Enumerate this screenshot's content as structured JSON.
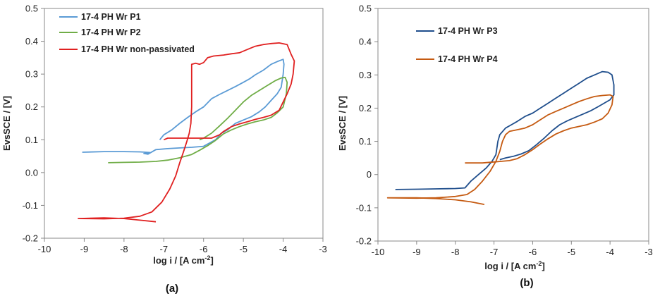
{
  "chart_data": [
    {
      "type": "line",
      "panel_label": "(a)",
      "title": "",
      "xlabel": "log i / [A cm",
      "xlabel_sup": "-2",
      "xlabel_end": "]",
      "ylabel": "EvsSCE / [V]",
      "xlim": [
        -10,
        -3
      ],
      "ylim": [
        -0.2,
        0.5
      ],
      "xticks": [
        -10,
        -9,
        -8,
        -7,
        -6,
        -5,
        -4,
        -3
      ],
      "yticks": [
        -0.2,
        -0.1,
        0.0,
        0.1,
        0.2,
        0.3,
        0.4,
        0.5
      ],
      "ytick_labels": [
        "-0.2",
        "-0.1",
        "0.0",
        "0.1",
        "0.2",
        "0.3",
        "0.4",
        "0.5"
      ],
      "grid": false,
      "legend_position": "top-left",
      "series": [
        {
          "name": "17-4 PH Wr P1",
          "color": "#5b9bd5",
          "points": [
            [
              -9.05,
              0.062
            ],
            [
              -8.5,
              0.064
            ],
            [
              -8.0,
              0.064
            ],
            [
              -7.6,
              0.063
            ],
            [
              -7.35,
              0.061
            ],
            [
              -7.5,
              0.058
            ],
            [
              -7.4,
              0.056
            ],
            [
              -7.2,
              0.07
            ],
            [
              -6.9,
              0.073
            ],
            [
              -6.6,
              0.075
            ],
            [
              -6.3,
              0.077
            ],
            [
              -6.0,
              0.08
            ],
            [
              -5.85,
              0.09
            ],
            [
              -5.7,
              0.1
            ],
            [
              -5.55,
              0.12
            ],
            [
              -5.4,
              0.13
            ],
            [
              -5.2,
              0.15
            ],
            [
              -5.0,
              0.16
            ],
            [
              -4.8,
              0.17
            ],
            [
              -4.6,
              0.185
            ],
            [
              -4.45,
              0.2
            ],
            [
              -4.3,
              0.22
            ],
            [
              -4.15,
              0.24
            ],
            [
              -4.05,
              0.26
            ],
            [
              -4.0,
              0.3
            ],
            [
              -3.98,
              0.33
            ],
            [
              -4.0,
              0.345
            ],
            [
              -4.15,
              0.338
            ],
            [
              -4.3,
              0.33
            ],
            [
              -4.5,
              0.312
            ],
            [
              -4.7,
              0.298
            ],
            [
              -4.85,
              0.285
            ],
            [
              -5.0,
              0.275
            ],
            [
              -5.2,
              0.262
            ],
            [
              -5.4,
              0.25
            ],
            [
              -5.6,
              0.238
            ],
            [
              -5.8,
              0.225
            ],
            [
              -6.0,
              0.2
            ],
            [
              -6.2,
              0.185
            ],
            [
              -6.4,
              0.168
            ],
            [
              -6.6,
              0.15
            ],
            [
              -6.8,
              0.13
            ],
            [
              -7.0,
              0.115
            ],
            [
              -7.1,
              0.1
            ]
          ]
        },
        {
          "name": "17-4 PH Wr P2",
          "color": "#70ad47",
          "points": [
            [
              -8.4,
              0.03
            ],
            [
              -8.0,
              0.031
            ],
            [
              -7.6,
              0.032
            ],
            [
              -7.2,
              0.034
            ],
            [
              -6.9,
              0.038
            ],
            [
              -6.6,
              0.045
            ],
            [
              -6.3,
              0.055
            ],
            [
              -6.1,
              0.068
            ],
            [
              -5.9,
              0.082
            ],
            [
              -5.7,
              0.098
            ],
            [
              -5.5,
              0.118
            ],
            [
              -5.3,
              0.13
            ],
            [
              -5.1,
              0.14
            ],
            [
              -4.9,
              0.148
            ],
            [
              -4.7,
              0.155
            ],
            [
              -4.5,
              0.16
            ],
            [
              -4.3,
              0.168
            ],
            [
              -4.15,
              0.182
            ],
            [
              -4.0,
              0.2
            ],
            [
              -3.92,
              0.24
            ],
            [
              -3.9,
              0.275
            ],
            [
              -3.95,
              0.29
            ],
            [
              -4.05,
              0.288
            ],
            [
              -4.2,
              0.28
            ],
            [
              -4.4,
              0.265
            ],
            [
              -4.6,
              0.25
            ],
            [
              -4.8,
              0.235
            ],
            [
              -5.0,
              0.215
            ],
            [
              -5.2,
              0.19
            ],
            [
              -5.4,
              0.165
            ],
            [
              -5.6,
              0.142
            ],
            [
              -5.8,
              0.12
            ],
            [
              -6.0,
              0.105
            ],
            [
              -6.1,
              0.1
            ]
          ]
        },
        {
          "name": "17-4 PH Wr non-passivated",
          "color": "#e02020",
          "points": [
            [
              -7.2,
              -0.15
            ],
            [
              -7.6,
              -0.145
            ],
            [
              -8.0,
              -0.14
            ],
            [
              -8.5,
              -0.138
            ],
            [
              -9.15,
              -0.14
            ],
            [
              -8.5,
              -0.141
            ],
            [
              -8.0,
              -0.139
            ],
            [
              -7.6,
              -0.133
            ],
            [
              -7.3,
              -0.12
            ],
            [
              -7.05,
              -0.09
            ],
            [
              -6.85,
              -0.05
            ],
            [
              -6.7,
              -0.01
            ],
            [
              -6.6,
              0.03
            ],
            [
              -6.5,
              0.065
            ],
            [
              -6.42,
              0.095
            ],
            [
              -6.36,
              0.12
            ],
            [
              -6.32,
              0.15
            ],
            [
              -6.3,
              0.2
            ],
            [
              -6.3,
              0.25
            ],
            [
              -6.3,
              0.3
            ],
            [
              -6.3,
              0.33
            ],
            [
              -6.2,
              0.333
            ],
            [
              -6.1,
              0.33
            ],
            [
              -6.0,
              0.335
            ],
            [
              -5.9,
              0.35
            ],
            [
              -5.75,
              0.355
            ],
            [
              -5.5,
              0.358
            ],
            [
              -5.3,
              0.362
            ],
            [
              -5.1,
              0.365
            ],
            [
              -4.9,
              0.375
            ],
            [
              -4.7,
              0.385
            ],
            [
              -4.5,
              0.39
            ],
            [
              -4.3,
              0.393
            ],
            [
              -4.1,
              0.395
            ],
            [
              -3.9,
              0.39
            ],
            [
              -3.8,
              0.36
            ],
            [
              -3.72,
              0.34
            ],
            [
              -3.75,
              0.3
            ],
            [
              -3.8,
              0.27
            ],
            [
              -3.9,
              0.24
            ],
            [
              -4.0,
              0.215
            ],
            [
              -4.1,
              0.19
            ],
            [
              -4.3,
              0.175
            ],
            [
              -4.5,
              0.168
            ],
            [
              -4.7,
              0.162
            ],
            [
              -4.9,
              0.155
            ],
            [
              -5.1,
              0.148
            ],
            [
              -5.3,
              0.14
            ],
            [
              -5.5,
              0.125
            ],
            [
              -5.6,
              0.115
            ],
            [
              -5.8,
              0.105
            ],
            [
              -6.0,
              0.105
            ],
            [
              -6.3,
              0.105
            ],
            [
              -6.6,
              0.105
            ],
            [
              -6.9,
              0.105
            ],
            [
              -7.0,
              0.1
            ]
          ]
        }
      ]
    },
    {
      "type": "line",
      "panel_label": "(b)",
      "title": "",
      "xlabel": "log i / [A cm",
      "xlabel_sup": "-2",
      "xlabel_end": "]",
      "ylabel": "EvsSCE / [V]",
      "xlim": [
        -10,
        -3
      ],
      "ylim": [
        -0.2,
        0.5
      ],
      "xticks": [
        -10,
        -9,
        -8,
        -7,
        -6,
        -5,
        -4,
        -3
      ],
      "yticks": [
        -0.2,
        -0.1,
        0.0,
        0.1,
        0.2,
        0.3,
        0.4,
        0.5
      ],
      "ytick_labels": [
        "-0.2",
        "-0.1",
        "0",
        "0.1",
        "0.2",
        "0.3",
        "0.4",
        "0.5"
      ],
      "grid": false,
      "legend_position": "top-left",
      "series": [
        {
          "name": "17-4 PH Wr P3",
          "color": "#1f4e8c",
          "points": [
            [
              -9.55,
              -0.045
            ],
            [
              -9.0,
              -0.044
            ],
            [
              -8.5,
              -0.043
            ],
            [
              -8.0,
              -0.042
            ],
            [
              -7.75,
              -0.04
            ],
            [
              -7.6,
              -0.02
            ],
            [
              -7.4,
              0.0
            ],
            [
              -7.2,
              0.02
            ],
            [
              -7.05,
              0.04
            ],
            [
              -6.95,
              0.06
            ],
            [
              -6.9,
              0.1
            ],
            [
              -6.85,
              0.12
            ],
            [
              -6.7,
              0.14
            ],
            [
              -6.55,
              0.15
            ],
            [
              -6.4,
              0.16
            ],
            [
              -6.2,
              0.175
            ],
            [
              -6.0,
              0.185
            ],
            [
              -5.8,
              0.2
            ],
            [
              -5.6,
              0.215
            ],
            [
              -5.4,
              0.23
            ],
            [
              -5.2,
              0.245
            ],
            [
              -5.0,
              0.26
            ],
            [
              -4.8,
              0.275
            ],
            [
              -4.6,
              0.29
            ],
            [
              -4.4,
              0.3
            ],
            [
              -4.2,
              0.31
            ],
            [
              -4.05,
              0.308
            ],
            [
              -3.95,
              0.3
            ],
            [
              -3.9,
              0.27
            ],
            [
              -3.9,
              0.24
            ],
            [
              -4.0,
              0.225
            ],
            [
              -4.15,
              0.215
            ],
            [
              -4.3,
              0.205
            ],
            [
              -4.5,
              0.192
            ],
            [
              -4.7,
              0.182
            ],
            [
              -4.9,
              0.172
            ],
            [
              -5.1,
              0.162
            ],
            [
              -5.3,
              0.15
            ],
            [
              -5.5,
              0.132
            ],
            [
              -5.7,
              0.11
            ],
            [
              -5.9,
              0.09
            ],
            [
              -6.1,
              0.072
            ],
            [
              -6.3,
              0.062
            ],
            [
              -6.5,
              0.055
            ],
            [
              -6.7,
              0.05
            ],
            [
              -6.85,
              0.045
            ]
          ]
        },
        {
          "name": "17-4 PH Wr P4",
          "color": "#c55a11",
          "points": [
            [
              -7.25,
              -0.09
            ],
            [
              -7.6,
              -0.082
            ],
            [
              -8.0,
              -0.076
            ],
            [
              -8.5,
              -0.072
            ],
            [
              -9.0,
              -0.07
            ],
            [
              -9.75,
              -0.07
            ],
            [
              -9.0,
              -0.071
            ],
            [
              -8.5,
              -0.07
            ],
            [
              -8.0,
              -0.066
            ],
            [
              -7.7,
              -0.06
            ],
            [
              -7.5,
              -0.045
            ],
            [
              -7.3,
              -0.02
            ],
            [
              -7.1,
              0.01
            ],
            [
              -6.95,
              0.04
            ],
            [
              -6.85,
              0.07
            ],
            [
              -6.78,
              0.1
            ],
            [
              -6.7,
              0.12
            ],
            [
              -6.6,
              0.13
            ],
            [
              -6.4,
              0.135
            ],
            [
              -6.2,
              0.14
            ],
            [
              -6.0,
              0.15
            ],
            [
              -5.8,
              0.165
            ],
            [
              -5.6,
              0.18
            ],
            [
              -5.4,
              0.19
            ],
            [
              -5.2,
              0.2
            ],
            [
              -5.0,
              0.21
            ],
            [
              -4.8,
              0.22
            ],
            [
              -4.6,
              0.228
            ],
            [
              -4.4,
              0.235
            ],
            [
              -4.2,
              0.238
            ],
            [
              -4.0,
              0.24
            ],
            [
              -3.92,
              0.235
            ],
            [
              -3.95,
              0.21
            ],
            [
              -4.05,
              0.185
            ],
            [
              -4.2,
              0.168
            ],
            [
              -4.4,
              0.158
            ],
            [
              -4.6,
              0.15
            ],
            [
              -4.8,
              0.145
            ],
            [
              -5.0,
              0.14
            ],
            [
              -5.2,
              0.132
            ],
            [
              -5.4,
              0.122
            ],
            [
              -5.6,
              0.108
            ],
            [
              -5.8,
              0.092
            ],
            [
              -6.0,
              0.075
            ],
            [
              -6.2,
              0.06
            ],
            [
              -6.4,
              0.048
            ],
            [
              -6.6,
              0.042
            ],
            [
              -6.8,
              0.04
            ],
            [
              -7.0,
              0.038
            ],
            [
              -7.3,
              0.035
            ],
            [
              -7.75,
              0.035
            ]
          ]
        }
      ]
    }
  ]
}
